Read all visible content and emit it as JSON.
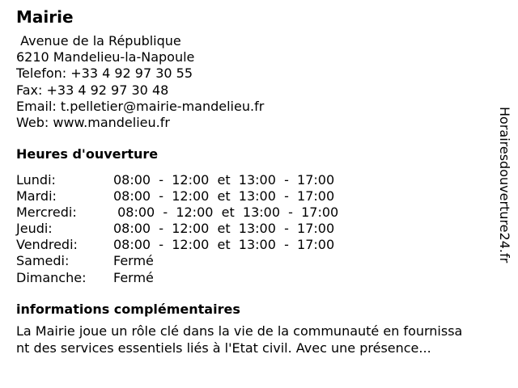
{
  "header": {
    "title": "Mairie"
  },
  "contact": {
    "street": " Avenue de la République",
    "city": "6210 Mandelieu-la-Napoule",
    "phone": "Telefon: +33 4 92 97 30 55",
    "fax": "Fax: +33 4 92 97 30 48",
    "email": "Email: t.pelletier@mairie-mandelieu.fr",
    "web": "Web: www.mandelieu.fr"
  },
  "hours": {
    "heading": "Heures d'ouverture",
    "rows": [
      {
        "day": "Lundi:",
        "time": "08:00  -  12:00  et  13:00  -  17:00"
      },
      {
        "day": "Mardi:",
        "time": "08:00  -  12:00  et  13:00  -  17:00"
      },
      {
        "day": "Mercredi:",
        "time": " 08:00  -  12:00  et  13:00  -  17:00"
      },
      {
        "day": "Jeudi:",
        "time": "08:00  -  12:00  et  13:00  -  17:00"
      },
      {
        "day": "Vendredi:",
        "time": "08:00  -  12:00  et  13:00  -  17:00"
      },
      {
        "day": "Samedi:",
        "time": "Fermé"
      },
      {
        "day": "Dimanche:",
        "time": "Fermé"
      }
    ]
  },
  "info": {
    "heading": "informations complémentaires",
    "lines": [
      "La Mairie joue un rôle clé dans la vie de la communauté en fournissa",
      "nt des services essentiels liés à l'Etat civil. Avec une présence..."
    ]
  },
  "watermark": {
    "text": "Horairesdouverture24.fr"
  },
  "colors": {
    "background": "#ffffff",
    "text": "#000000"
  }
}
